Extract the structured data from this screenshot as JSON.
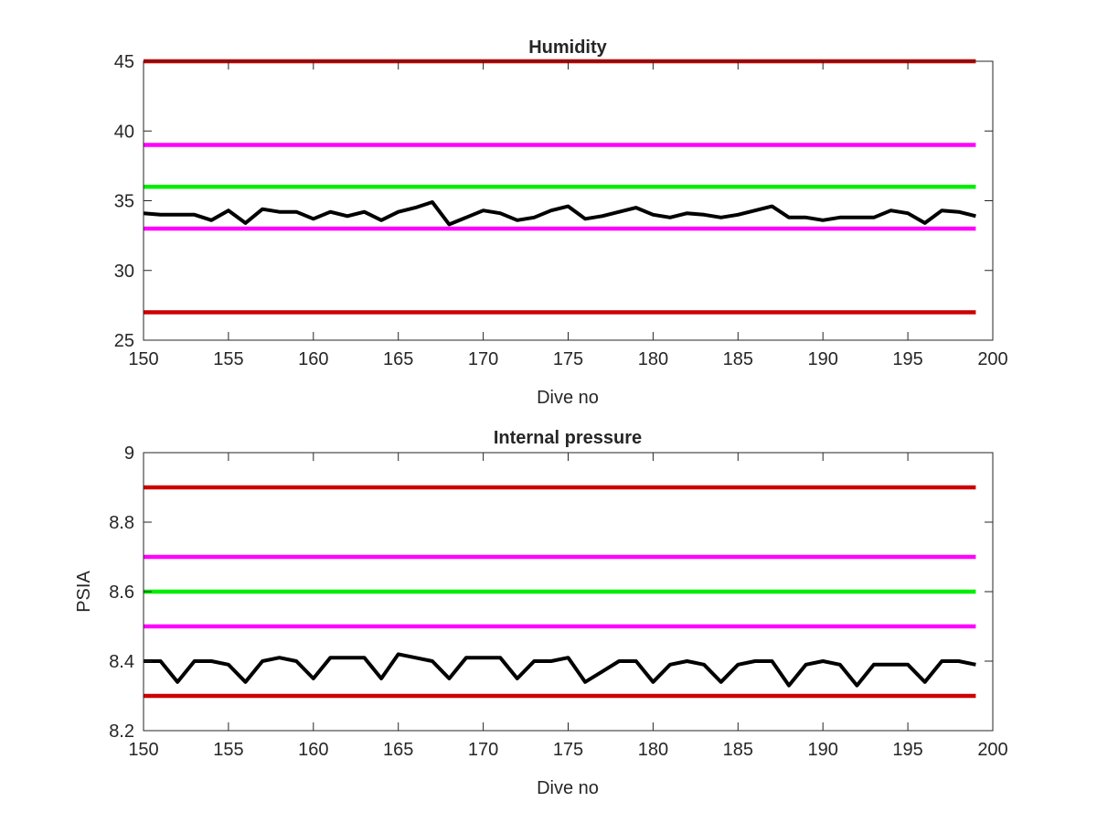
{
  "chart_data": [
    {
      "type": "line",
      "title": "Humidity",
      "xlabel": "Dive no",
      "ylabel": "",
      "xlim": [
        150,
        200
      ],
      "ylim": [
        25,
        45
      ],
      "xticks": [
        "150",
        "155",
        "160",
        "165",
        "170",
        "175",
        "180",
        "185",
        "190",
        "195",
        "200"
      ],
      "yticks": [
        "25",
        "30",
        "35",
        "40",
        "45"
      ],
      "grid": false,
      "thresholds": [
        {
          "value": 45,
          "color": "#cc0000"
        },
        {
          "value": 39,
          "color": "#ff00ff"
        },
        {
          "value": 36,
          "color": "#00ee00"
        },
        {
          "value": 33,
          "color": "#ff00ff"
        },
        {
          "value": 27,
          "color": "#cc0000"
        }
      ],
      "series": [
        {
          "color": "#000000",
          "x": [
            150,
            151,
            152,
            153,
            154,
            155,
            156,
            157,
            158,
            159,
            160,
            161,
            162,
            163,
            164,
            165,
            166,
            167,
            168,
            169,
            170,
            171,
            172,
            173,
            174,
            175,
            176,
            177,
            178,
            179,
            180,
            181,
            182,
            183,
            184,
            185,
            186,
            187,
            188,
            189,
            190,
            191,
            192,
            193,
            194,
            195,
            196,
            197,
            198,
            199
          ],
          "values": [
            34.1,
            34.0,
            34.0,
            34.0,
            33.6,
            34.3,
            33.4,
            34.4,
            34.2,
            34.2,
            33.7,
            34.2,
            33.9,
            34.2,
            33.6,
            34.2,
            34.5,
            34.9,
            33.3,
            33.8,
            34.3,
            34.1,
            33.6,
            33.8,
            34.3,
            34.6,
            33.7,
            33.9,
            34.2,
            34.5,
            34.0,
            33.8,
            34.1,
            34.0,
            33.8,
            34.0,
            34.3,
            34.6,
            33.8,
            33.8,
            33.6,
            33.8,
            33.8,
            33.8,
            34.3,
            34.1,
            33.4,
            34.3,
            34.2,
            33.9
          ]
        }
      ]
    },
    {
      "type": "line",
      "title": "Internal pressure",
      "xlabel": "Dive no",
      "ylabel": "PSIA",
      "xlim": [
        150,
        200
      ],
      "ylim": [
        8.2,
        9
      ],
      "xticks": [
        "150",
        "155",
        "160",
        "165",
        "170",
        "175",
        "180",
        "185",
        "190",
        "195",
        "200"
      ],
      "yticks": [
        "8.2",
        "8.4",
        "8.6",
        "8.8",
        "9"
      ],
      "grid": false,
      "thresholds": [
        {
          "value": 8.9,
          "color": "#cc0000"
        },
        {
          "value": 8.7,
          "color": "#ff00ff"
        },
        {
          "value": 8.6,
          "color": "#00ee00"
        },
        {
          "value": 8.5,
          "color": "#ff00ff"
        },
        {
          "value": 8.3,
          "color": "#cc0000"
        }
      ],
      "series": [
        {
          "color": "#000000",
          "x": [
            150,
            151,
            152,
            153,
            154,
            155,
            156,
            157,
            158,
            159,
            160,
            161,
            162,
            163,
            164,
            165,
            166,
            167,
            168,
            169,
            170,
            171,
            172,
            173,
            174,
            175,
            176,
            177,
            178,
            179,
            180,
            181,
            182,
            183,
            184,
            185,
            186,
            187,
            188,
            189,
            190,
            191,
            192,
            193,
            194,
            195,
            196,
            197,
            198,
            199
          ],
          "values": [
            8.4,
            8.4,
            8.34,
            8.4,
            8.4,
            8.39,
            8.34,
            8.4,
            8.41,
            8.4,
            8.35,
            8.41,
            8.41,
            8.41,
            8.35,
            8.42,
            8.41,
            8.4,
            8.35,
            8.41,
            8.41,
            8.41,
            8.35,
            8.4,
            8.4,
            8.41,
            8.34,
            8.37,
            8.4,
            8.4,
            8.34,
            8.39,
            8.4,
            8.39,
            8.34,
            8.39,
            8.4,
            8.4,
            8.33,
            8.39,
            8.4,
            8.39,
            8.33,
            8.39,
            8.39,
            8.39,
            8.34,
            8.4,
            8.4,
            8.39
          ]
        }
      ]
    }
  ]
}
